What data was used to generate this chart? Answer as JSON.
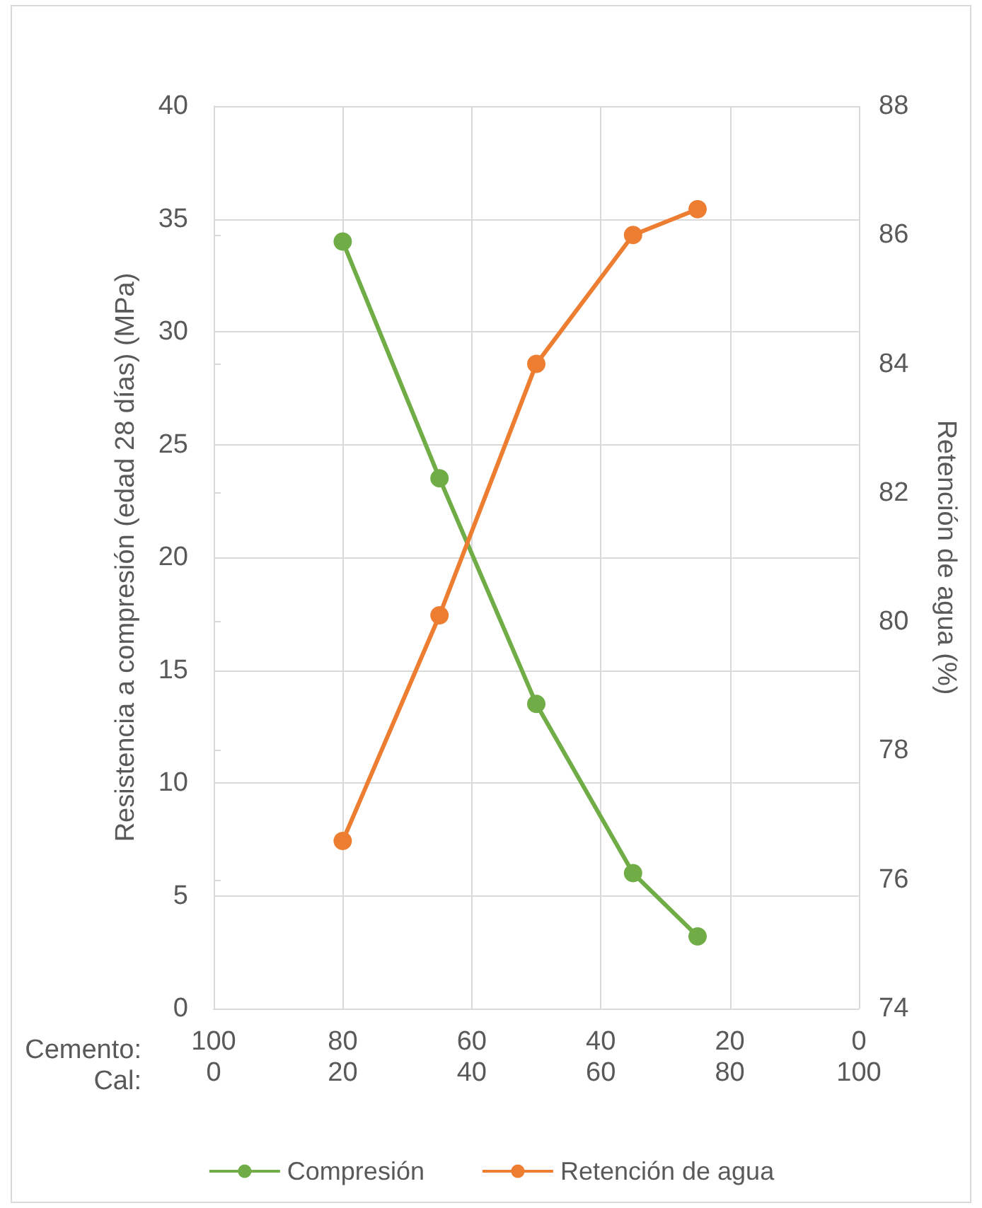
{
  "chart_data": {
    "type": "line",
    "xlabel": "Cemento:",
    "x2label": "Cal:",
    "ylabel": "Resistencia a compresión (edad 28 días) (MPa)",
    "y2label": "Retención de agua (%)",
    "xlim": [
      100,
      0
    ],
    "xticks": [
      100,
      80,
      60,
      40,
      20,
      0
    ],
    "x2lim": [
      0,
      100
    ],
    "x2ticks": [
      0,
      20,
      40,
      60,
      80,
      100
    ],
    "ylim": [
      0,
      40
    ],
    "yticks": [
      0,
      5,
      10,
      15,
      20,
      25,
      30,
      35,
      40
    ],
    "y2lim": [
      74,
      88
    ],
    "y2ticks": [
      74,
      76,
      78,
      80,
      82,
      84,
      86,
      88
    ],
    "x": [
      80,
      65,
      50,
      35,
      25
    ],
    "series": [
      {
        "name": "Compresión",
        "color": "#70ad47",
        "values": [
          34,
          23.5,
          13.5,
          6.0,
          3.2
        ]
      },
      {
        "name": "Retención de agua",
        "color": "#ed7d31",
        "axis": "y2",
        "values": [
          76.6,
          80.1,
          84.0,
          86.0,
          86.4
        ]
      }
    ],
    "grid": true,
    "legend": "bottom",
    "marker": "circle",
    "line_style": "solid"
  }
}
